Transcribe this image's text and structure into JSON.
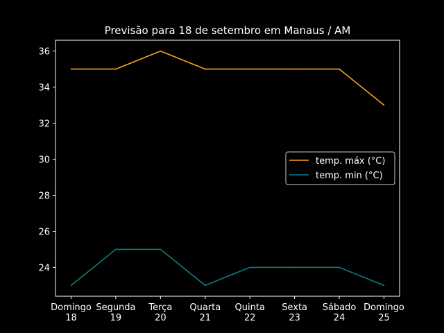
{
  "chart_data": {
    "type": "line",
    "title": "Previsão para 18 de setembro em Manaus / AM",
    "xlabel": "",
    "ylabel": "",
    "categories": [
      [
        "Domingo",
        "18"
      ],
      [
        "Segunda",
        "19"
      ],
      [
        "Terça",
        "20"
      ],
      [
        "Quarta",
        "21"
      ],
      [
        "Quinta",
        "22"
      ],
      [
        "Sexta",
        "23"
      ],
      [
        "Sábado",
        "24"
      ],
      [
        "Domingo",
        "25"
      ]
    ],
    "ylim": [
      22.4,
      36.6
    ],
    "yticks": [
      24,
      26,
      28,
      30,
      32,
      34,
      36
    ],
    "grid": false,
    "legend_position": "center-right",
    "background": "#000000",
    "series": [
      {
        "name": "temp. máx (°C)",
        "color": "#f5a623",
        "values": [
          35,
          35,
          36,
          35,
          35,
          35,
          35,
          33
        ]
      },
      {
        "name": "temp. min (°C)",
        "color": "#0b7f7f",
        "values": [
          23,
          25,
          25,
          23,
          24,
          24,
          24,
          23
        ]
      }
    ]
  }
}
